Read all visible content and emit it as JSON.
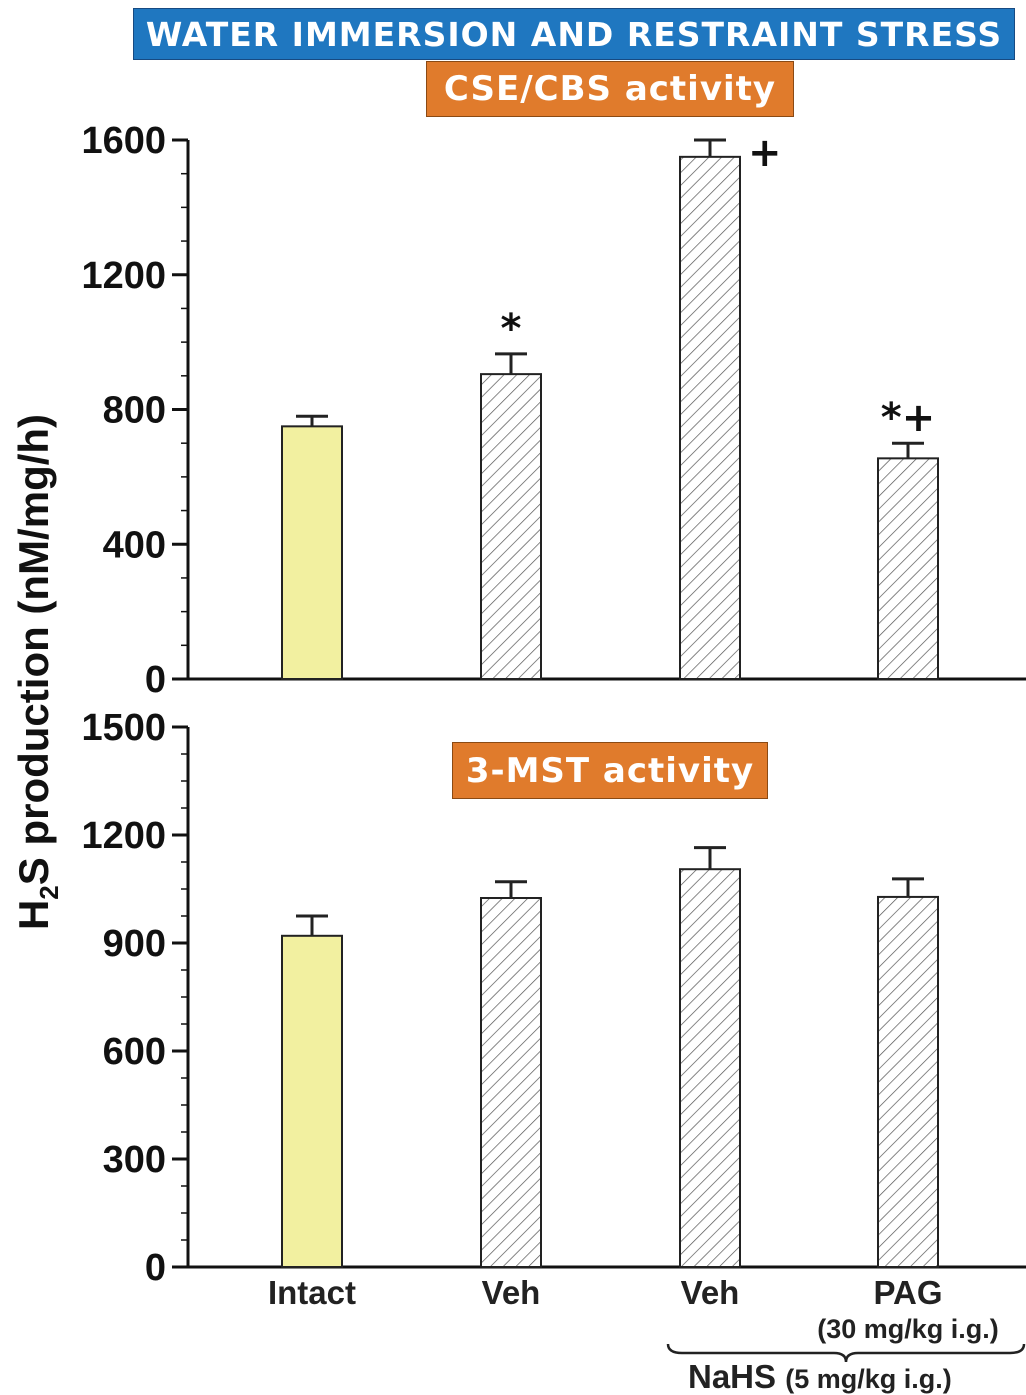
{
  "header": {
    "title": "WATER IMMERSION AND RESTRAINT STRESS",
    "title_bg": "#1f77c0"
  },
  "colors": {
    "accent": "#e07b2c",
    "intact_fill": "#f2f0a0",
    "hatch": "#555555"
  },
  "y_axis_label_main": "H",
  "y_axis_label_sub": "2",
  "y_axis_label_rest": "S production (nM/mg/h)",
  "chart_data": [
    {
      "type": "bar",
      "title": "CSE/CBS activity",
      "categories": [
        "Intact",
        "Veh",
        "Veh",
        "PAG"
      ],
      "values": [
        750,
        905,
        1550,
        655
      ],
      "errors": [
        30,
        60,
        50,
        45
      ],
      "significance": [
        "",
        "*",
        "+",
        "*+"
      ],
      "ylim": [
        0,
        1600
      ],
      "yticks": [
        0,
        400,
        800,
        1200,
        1600
      ],
      "fill": [
        "solid",
        "hatched",
        "hatched",
        "hatched"
      ]
    },
    {
      "type": "bar",
      "title": "3-MST activity",
      "categories": [
        "Intact",
        "Veh",
        "Veh",
        "PAG"
      ],
      "values": [
        920,
        1025,
        1105,
        1028
      ],
      "errors": [
        55,
        45,
        60,
        50
      ],
      "significance": [
        "",
        "",
        "",
        ""
      ],
      "ylim": [
        0,
        1500
      ],
      "yticks": [
        0,
        300,
        600,
        900,
        1200,
        1500
      ],
      "fill": [
        "solid",
        "hatched",
        "hatched",
        "hatched"
      ]
    }
  ],
  "x_labels": [
    "Intact",
    "Veh",
    "Veh",
    "PAG"
  ],
  "pag_dose": "(30 mg/kg i.g.)",
  "nahs_label": "NaHS",
  "nahs_dose": "(5 mg/kg i.g.)"
}
